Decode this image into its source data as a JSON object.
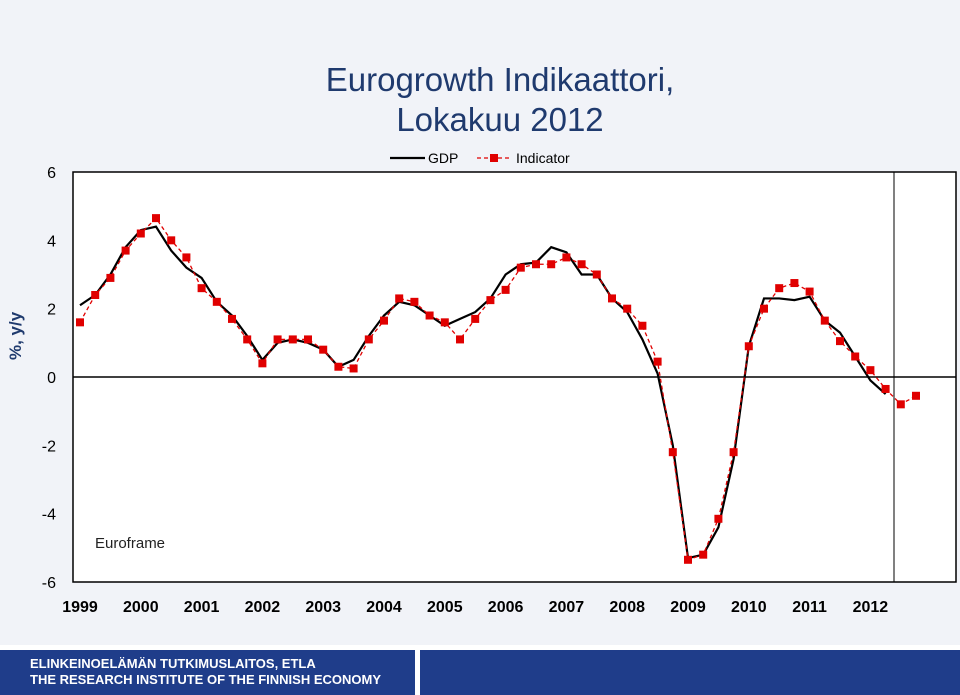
{
  "title_line1": "Eurogrowth Indikaattori,",
  "title_line2": "Lokakuu 2012",
  "footer_line1": "ELINKEINOELÄMÄN TUTKIMUSLAITOS, ETLA",
  "footer_line2": "THE RESEARCH INSTITUTE OF THE FINNISH ECONOMY",
  "chart_data": {
    "type": "line",
    "ylabel": "%, y/y",
    "ylim": [
      -6,
      6
    ],
    "yticks": [
      "6",
      "4",
      "2",
      "0",
      "-2",
      "-4",
      "-6"
    ],
    "x_ticks": [
      "1999",
      "2000",
      "2001",
      "2002",
      "2003",
      "2004",
      "2005",
      "2006",
      "2007",
      "2008",
      "2009",
      "2010",
      "2011",
      "2012"
    ],
    "annotation": "Euroframe",
    "legend_position": "top",
    "series": [
      {
        "name": "GDP",
        "color": "#000000",
        "values": [
          2.1,
          2.4,
          3.0,
          3.8,
          4.3,
          4.4,
          3.7,
          3.2,
          2.9,
          2.2,
          1.8,
          1.2,
          0.5,
          1.0,
          1.1,
          1.0,
          0.8,
          0.3,
          0.5,
          1.2,
          1.8,
          2.2,
          2.1,
          1.8,
          1.5,
          1.7,
          1.9,
          2.3,
          3.0,
          3.3,
          3.35,
          3.8,
          3.65,
          3.0,
          3.0,
          2.3,
          1.9,
          1.1,
          0.1,
          -2.0,
          -5.3,
          -5.2,
          -4.4,
          -2.4,
          0.9,
          2.3,
          2.3,
          2.25,
          2.35,
          1.65,
          1.3,
          0.6,
          -0.1,
          -0.5
        ]
      },
      {
        "name": "Indicator",
        "color": "#e00000",
        "values": [
          1.6,
          2.4,
          2.9,
          3.7,
          4.2,
          4.65,
          4.0,
          3.5,
          2.6,
          2.2,
          1.7,
          1.1,
          0.4,
          1.1,
          1.1,
          1.1,
          0.8,
          0.3,
          0.25,
          1.1,
          1.65,
          2.3,
          2.2,
          1.8,
          1.6,
          1.1,
          1.7,
          2.25,
          2.55,
          3.2,
          3.3,
          3.3,
          3.5,
          3.3,
          3.0,
          2.3,
          2.0,
          1.5,
          0.45,
          -2.2,
          -5.35,
          -5.2,
          -4.15,
          -2.2,
          0.9,
          2.0,
          2.6,
          2.75,
          2.5,
          1.65,
          1.05,
          0.6,
          0.2,
          -0.35,
          -0.8,
          -0.55
        ]
      }
    ]
  }
}
